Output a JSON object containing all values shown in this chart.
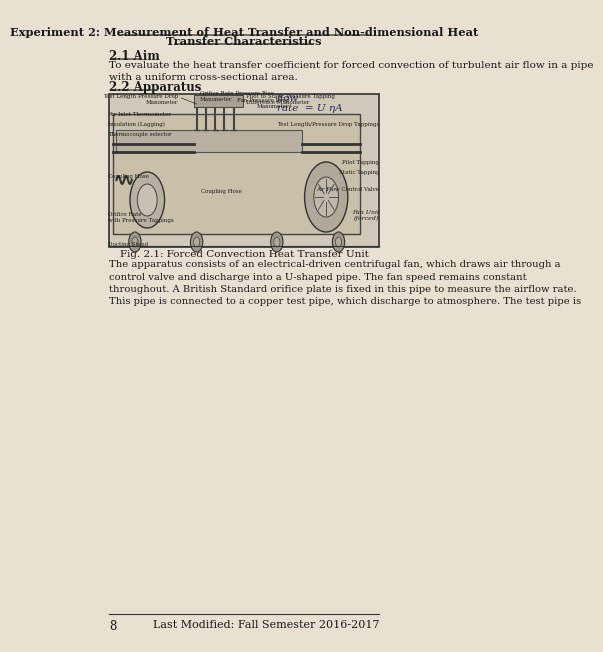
{
  "title_line1": "Experiment 2: Measurement of Heat Transfer and Non-dimensional Heat",
  "title_line2": "Transfer Characteristics",
  "section_aim": "2.1 Aim",
  "aim_text": "To evaluate the heat transfer coefficient for forced convection of turbulent air flow in a pipe\nwith a uniform cross-sectional area.",
  "section_apparatus": "2.2 Apparatus",
  "fig_caption": "Fig. 2.1: Forced Convection Heat Transfer Unit",
  "body_text": "The apparatus consists of an electrical-driven centrifugal fan, which draws air through a\ncontrol valve and discharge into a U-shaped pipe. The fan speed remains constant\nthroughout. A British Standard orifice plate is fixed in this pipe to measure the airflow rate.\nThis pipe is connected to a copper test pipe, which discharge to atmosphere. The test pipe is",
  "page_num": "8",
  "footer": "Last Modified: Fall Semester 2016-2017",
  "bg_color": "#e8e0d0",
  "text_color": "#1a1a1a",
  "flow_annotation": "flow\nrate  = U ηA"
}
